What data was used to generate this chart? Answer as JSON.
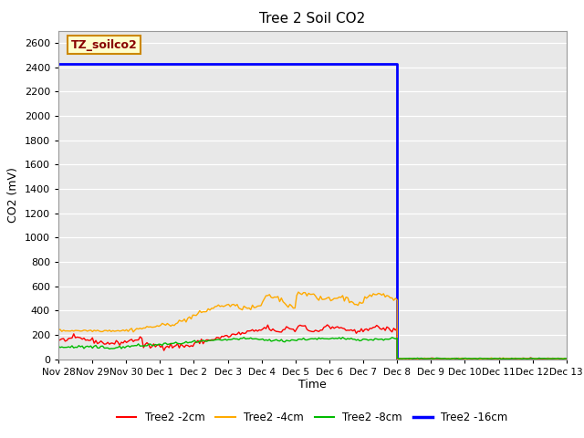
{
  "title": "Tree 2 Soil CO2",
  "ylabel": "CO2 (mV)",
  "xlabel": "Time",
  "ylim": [
    0,
    2700
  ],
  "yticks": [
    0,
    200,
    400,
    600,
    800,
    1000,
    1200,
    1400,
    1600,
    1800,
    2000,
    2200,
    2400,
    2600
  ],
  "plot_bg": "#e8e8e8",
  "annotation_label": "TZ_soilco2",
  "annotation_bg": "#ffffcc",
  "annotation_border": "#cc8800",
  "blue_level": 2430,
  "blue_drop_x": 10.0,
  "blue_end_x": 15.0,
  "xtick_positions": [
    0,
    1,
    2,
    3,
    4,
    5,
    6,
    7,
    8,
    9,
    10,
    11,
    12,
    13,
    14,
    15
  ],
  "xtick_labels": [
    "Nov 28",
    "Nov 29",
    "Nov 30",
    "Dec 1",
    "Dec 2",
    "Dec 3",
    "Dec 4",
    "Dec 5",
    "Dec 6",
    "Dec 7",
    "Dec 8",
    "Dec 9",
    "Dec 10",
    "Dec 11",
    "Dec 12",
    "Dec 13"
  ],
  "xmin": 0,
  "xmax": 15,
  "series": [
    {
      "label": "Tree2 -2cm",
      "color": "#ff0000",
      "linewidth": 1.0
    },
    {
      "label": "Tree2 -4cm",
      "color": "#ffaa00",
      "linewidth": 1.0
    },
    {
      "label": "Tree2 -8cm",
      "color": "#00bb00",
      "linewidth": 1.0
    },
    {
      "label": "Tree2 -16cm",
      "color": "#0000ff",
      "linewidth": 2.0
    }
  ]
}
